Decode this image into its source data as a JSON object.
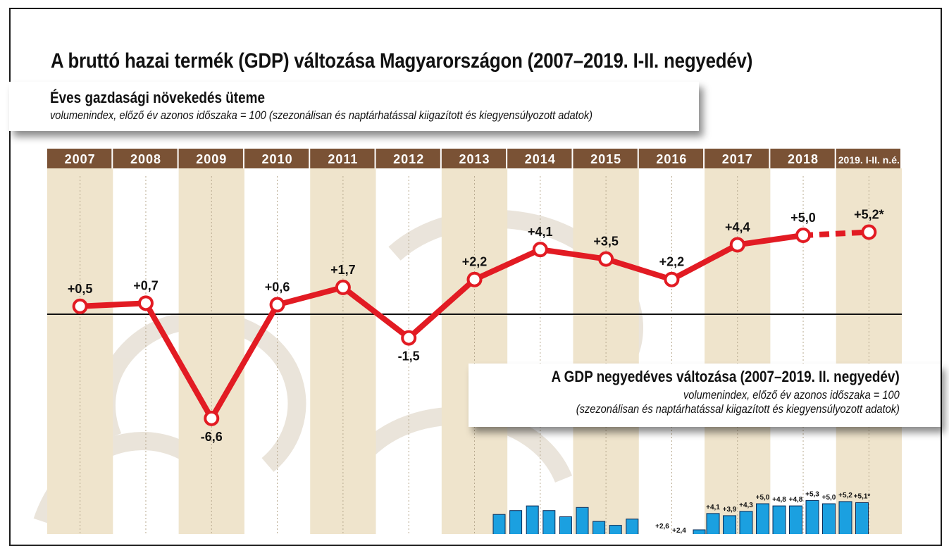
{
  "title": "A bruttó hazai termék (GDP) változása Magyarországon (2007–2019. I-II. negyedév)",
  "colors": {
    "line": "#e21b23",
    "header": "#7a5235",
    "bar": "#1ba0e0",
    "bar_edge": "#0a2a55",
    "band": "#efe4cc"
  },
  "chart_data": [
    {
      "type": "line",
      "title": "Éves gazdasági növekedés üteme",
      "subtitle": "volumenindex, előző év azonos időszaka = 100 (szezonálisan és naptárhatással kiigazított és kiegyensúlyozott adatok)",
      "categories": [
        "2007",
        "2008",
        "2009",
        "2010",
        "2011",
        "2012",
        "2013",
        "2014",
        "2015",
        "2016",
        "2017",
        "2018",
        "2019. I-II. n.é."
      ],
      "values": [
        0.5,
        0.7,
        -6.6,
        0.6,
        1.7,
        -1.5,
        2.2,
        4.1,
        3.5,
        2.2,
        4.4,
        5.0,
        5.2
      ],
      "labels": [
        "+0,5",
        "+0,7",
        "-6,6",
        "+0,6",
        "+1,7",
        "-1,5",
        "+2,2",
        "+4,1",
        "+3,5",
        "+2,2",
        "+4,4",
        "+5,0",
        "+5,2*"
      ],
      "dashed_last_segment": true,
      "baseline": 0
    },
    {
      "type": "bar",
      "title": "A GDP negyedéves változása (2007–2019. II. negyedév)",
      "subtitle_lines": [
        "volumenindex, előző év azonos időszaka = 100",
        "(szezonálisan és naptárhatással kiigazított és kiegyensúlyozott adatok)"
      ],
      "visible_bar_labels": [
        "+2,6",
        "+2,4",
        "+4,1",
        "+3,9",
        "+4,3",
        "+5,0",
        "+4,8",
        "+4,8",
        "+5,3",
        "+5,0",
        "+5,2",
        "+5,1*"
      ],
      "visible_bar_values": [
        2.6,
        2.4,
        4.1,
        3.9,
        4.3,
        5.0,
        4.8,
        4.8,
        5.3,
        5.0,
        5.2,
        5.1
      ]
    }
  ]
}
